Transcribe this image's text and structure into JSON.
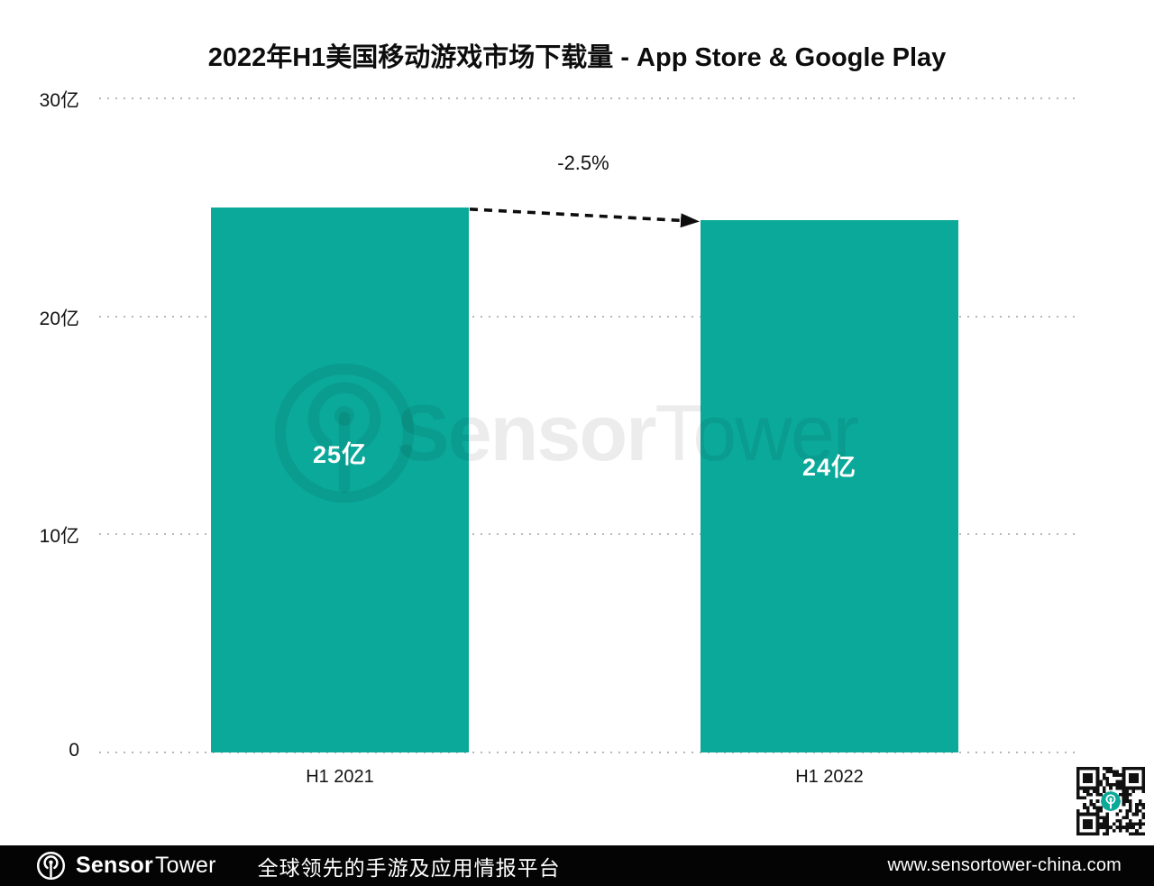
{
  "title": "2022年H1美国移动游戏市场下载量 - App Store & Google Play",
  "chart_data": {
    "type": "bar",
    "categories": [
      "H1 2021",
      "H1 2022"
    ],
    "values": [
      25,
      24.4
    ],
    "value_labels": [
      "25亿",
      "24亿"
    ],
    "unit": "亿",
    "annotation": "-2.5%",
    "ylim": [
      0,
      30
    ],
    "yticks": [
      0,
      10,
      20,
      30
    ],
    "ytick_labels": [
      "0",
      "10亿",
      "20亿",
      "30亿"
    ],
    "bar_color": "#0BA99A",
    "grid": "horizontal-dotted",
    "legend": "none",
    "xlabel": "",
    "ylabel": ""
  },
  "watermark": {
    "brand_bold": "Sensor",
    "brand_regular": "Tower"
  },
  "footer": {
    "brand_bold": "Sensor",
    "brand_regular": "Tower",
    "tagline": "全球领先的手游及应用情报平台",
    "url": "www.sensortower-china.com"
  },
  "colors": {
    "bar": "#0BA99A",
    "footer_bg": "#040404",
    "grid_dot": "#B7B7B7"
  }
}
